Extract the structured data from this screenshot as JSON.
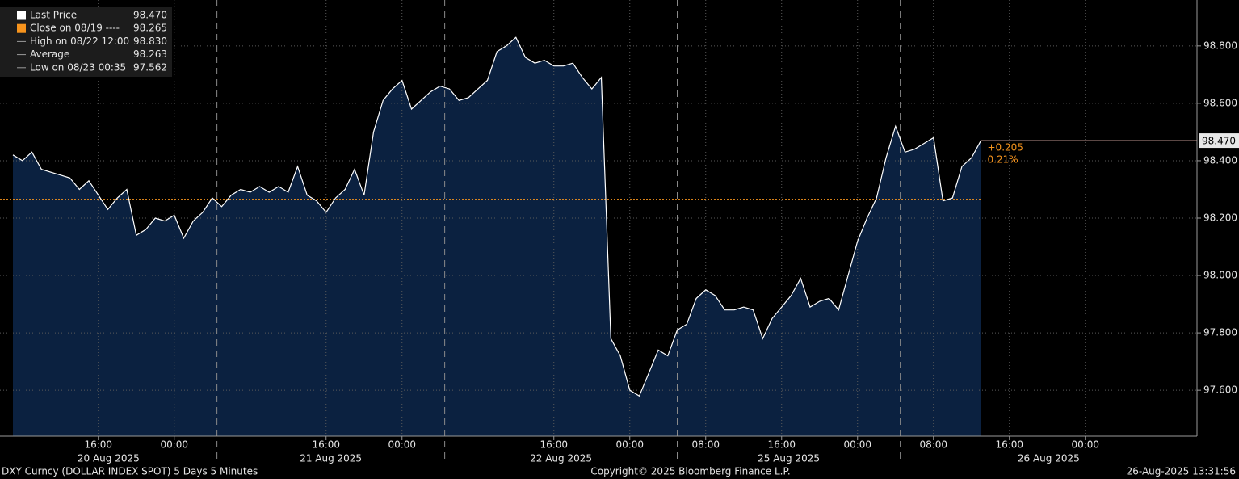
{
  "chart_data": {
    "type": "area",
    "categories": [
      "08/20 07:00",
      "08/20 08:00",
      "08/20 09:00",
      "08/20 10:00",
      "08/20 11:00",
      "08/20 12:00",
      "08/20 13:00",
      "08/20 14:00",
      "08/20 15:00",
      "08/20 16:00",
      "08/20 17:00",
      "08/20 18:00",
      "08/20 19:00",
      "08/20 20:00",
      "08/20 21:00",
      "08/20 22:00",
      "08/20 23:00",
      "08/21 00:00",
      "08/21 01:00",
      "08/21 02:00",
      "08/21 03:00",
      "08/21 04:00",
      "08/21 05:00",
      "08/21 06:00",
      "08/21 07:00",
      "08/21 08:00",
      "08/21 09:00",
      "08/21 10:00",
      "08/21 11:00",
      "08/21 12:00",
      "08/21 13:00",
      "08/21 14:00",
      "08/21 15:00",
      "08/21 16:00",
      "08/21 17:00",
      "08/21 18:00",
      "08/21 19:00",
      "08/21 20:00",
      "08/21 21:00",
      "08/21 22:00",
      "08/21 23:00",
      "08/22 00:00",
      "08/22 01:00",
      "08/22 02:00",
      "08/22 03:00",
      "08/22 04:00",
      "08/22 05:00",
      "08/22 06:00",
      "08/22 07:00",
      "08/22 08:00",
      "08/22 09:00",
      "08/22 10:00",
      "08/22 11:00",
      "08/22 12:00",
      "08/22 13:00",
      "08/22 14:00",
      "08/22 15:00",
      "08/22 16:00",
      "08/22 17:00",
      "08/22 18:00",
      "08/22 19:00",
      "08/22 20:00",
      "08/22 21:00",
      "08/22 22:00",
      "08/22 23:00",
      "08/23 00:00",
      "08/23 01:00",
      "08/23 02:00",
      "08/23 03:00",
      "08/23 04:00",
      "08/25 05:00",
      "08/25 06:00",
      "08/25 07:00",
      "08/25 08:00",
      "08/25 09:00",
      "08/25 10:00",
      "08/25 11:00",
      "08/25 12:00",
      "08/25 13:00",
      "08/25 14:00",
      "08/25 15:00",
      "08/25 16:00",
      "08/25 17:00",
      "08/25 18:00",
      "08/25 19:00",
      "08/25 20:00",
      "08/25 21:00",
      "08/25 22:00",
      "08/25 23:00",
      "08/26 00:00",
      "08/26 01:00",
      "08/26 02:00",
      "08/26 03:00",
      "08/26 04:00",
      "08/26 05:00",
      "08/26 06:00",
      "08/26 07:00",
      "08/26 08:00",
      "08/26 09:00",
      "08/26 10:00",
      "08/26 11:00",
      "08/26 12:00",
      "08/26 13:00"
    ],
    "series": [
      {
        "name": "Last Price",
        "color": "#ffffff",
        "fill": "#0b2140",
        "values": [
          98.42,
          98.4,
          98.43,
          98.37,
          98.36,
          98.35,
          98.34,
          98.3,
          98.33,
          98.28,
          98.23,
          98.27,
          98.3,
          98.14,
          98.16,
          98.2,
          98.19,
          98.21,
          98.13,
          98.19,
          98.22,
          98.27,
          98.24,
          98.28,
          98.3,
          98.29,
          98.31,
          98.29,
          98.31,
          98.29,
          98.38,
          98.28,
          98.26,
          98.22,
          98.27,
          98.3,
          98.37,
          98.28,
          98.5,
          98.61,
          98.65,
          98.68,
          98.58,
          98.61,
          98.64,
          98.66,
          98.65,
          98.61,
          98.62,
          98.65,
          98.68,
          98.78,
          98.8,
          98.83,
          98.76,
          98.74,
          98.75,
          98.73,
          98.73,
          98.74,
          98.69,
          98.65,
          98.69,
          97.78,
          97.72,
          97.6,
          97.58,
          97.66,
          97.74,
          97.72,
          97.81,
          97.83,
          97.92,
          97.95,
          97.93,
          97.88,
          97.88,
          97.89,
          97.88,
          97.78,
          97.85,
          97.89,
          97.93,
          97.99,
          97.89,
          97.91,
          97.92,
          97.88,
          98.0,
          98.12,
          98.2,
          98.27,
          98.41,
          98.52,
          98.43,
          98.44,
          98.46,
          98.48,
          98.26,
          98.27,
          98.38,
          98.41,
          98.47
        ]
      }
    ],
    "ylim": [
      97.44,
      98.96
    ],
    "yticks": [
      {
        "value": 97.6,
        "label": "97.600"
      },
      {
        "value": 97.8,
        "label": "97.800"
      },
      {
        "value": 98.0,
        "label": "98.000"
      },
      {
        "value": 98.2,
        "label": "98.200"
      },
      {
        "value": 98.4,
        "label": "98.400"
      },
      {
        "value": 98.6,
        "label": "98.600"
      },
      {
        "value": 98.8,
        "label": "98.800"
      }
    ],
    "xticks": [
      {
        "value": "08/20 16:00",
        "label": "16:00"
      },
      {
        "value": "08/21 00:00",
        "label": "00:00"
      },
      {
        "value": "08/21 16:00",
        "label": "16:00"
      },
      {
        "value": "08/22 00:00",
        "label": "00:00"
      },
      {
        "value": "08/22 16:00",
        "label": "16:00"
      },
      {
        "value": "08/23 00:00",
        "label": "00:00"
      },
      {
        "value": "08/25 08:00",
        "label": "08:00"
      },
      {
        "value": "08/25 16:00",
        "label": "16:00"
      },
      {
        "value": "08/26 00:00",
        "label": "00:00"
      },
      {
        "value": "08/26 08:00",
        "label": "08:00"
      },
      {
        "value": "08/26 16:00",
        "label": "16:00"
      },
      {
        "value": "08/27 00:00",
        "label": "00:00"
      }
    ],
    "days": [
      {
        "value": "08/20",
        "label": "20 Aug 2025"
      },
      {
        "value": "08/21",
        "label": "21 Aug 2025"
      },
      {
        "value": "08/22",
        "label": "22 Aug 2025"
      },
      {
        "value": "08/25",
        "label": "25 Aug 2025"
      },
      {
        "value": "08/26",
        "label": "26 Aug 2025"
      }
    ],
    "legend": {
      "names": [
        "Last Price",
        "Close on 08/19 ----",
        "High on 08/22 12:00",
        "Average",
        "Low on 08/23 00:35"
      ],
      "values": [
        98.47,
        98.265,
        98.83,
        98.263,
        97.562
      ],
      "value_labels": [
        "98.470",
        "98.265",
        "98.830",
        "98.263",
        "97.562"
      ],
      "colors": [
        "#ffffff",
        "#f7941d",
        "#9a9a9a",
        "#9a9a9a",
        "#9a9a9a"
      ]
    },
    "change": [
      {
        "value": 0.205,
        "label": "+0.205"
      },
      {
        "value": 0.21,
        "label": "0.21%"
      }
    ],
    "change_color": "#f7941d",
    "grid": true,
    "footer": {
      "left": "DXY Curncy (DOLLAR INDEX SPOT) 5 Days 5 Minutes",
      "center": "Copyright© 2025 Bloomberg Finance L.P.",
      "right": "26-Aug-2025 13:31:56"
    }
  }
}
